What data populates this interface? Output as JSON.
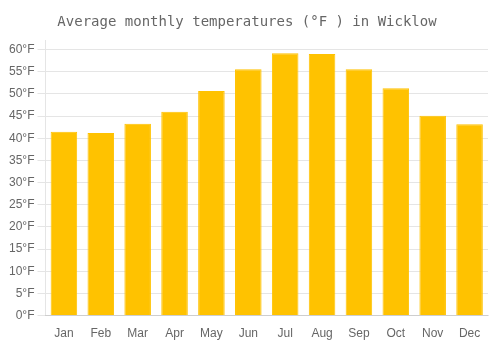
{
  "chart_data": {
    "type": "bar",
    "title": "Average monthly temperatures (°F ) in Wicklow",
    "categories": [
      "Jan",
      "Feb",
      "Mar",
      "Apr",
      "May",
      "Jun",
      "Jul",
      "Aug",
      "Sep",
      "Oct",
      "Nov",
      "Dec"
    ],
    "values": [
      41.5,
      41.2,
      43.3,
      46.0,
      50.7,
      55.6,
      59.2,
      59.0,
      55.6,
      51.3,
      45.1,
      43.2
    ],
    "color": "#FFC200",
    "ylim": [
      0,
      62
    ],
    "yticks": [
      {
        "value": 0,
        "label": "0°F"
      },
      {
        "value": 5,
        "label": "5°F"
      },
      {
        "value": 10,
        "label": "10°F"
      },
      {
        "value": 15,
        "label": "15°F"
      },
      {
        "value": 20,
        "label": "20°F"
      },
      {
        "value": 25,
        "label": "25°F"
      },
      {
        "value": 30,
        "label": "30°F"
      },
      {
        "value": 35,
        "label": "35°F"
      },
      {
        "value": 40,
        "label": "40°F"
      },
      {
        "value": 45,
        "label": "45°F"
      },
      {
        "value": 50,
        "label": "50°F"
      },
      {
        "value": 55,
        "label": "55°F"
      },
      {
        "value": 60,
        "label": "60°F"
      }
    ],
    "grid": true
  }
}
